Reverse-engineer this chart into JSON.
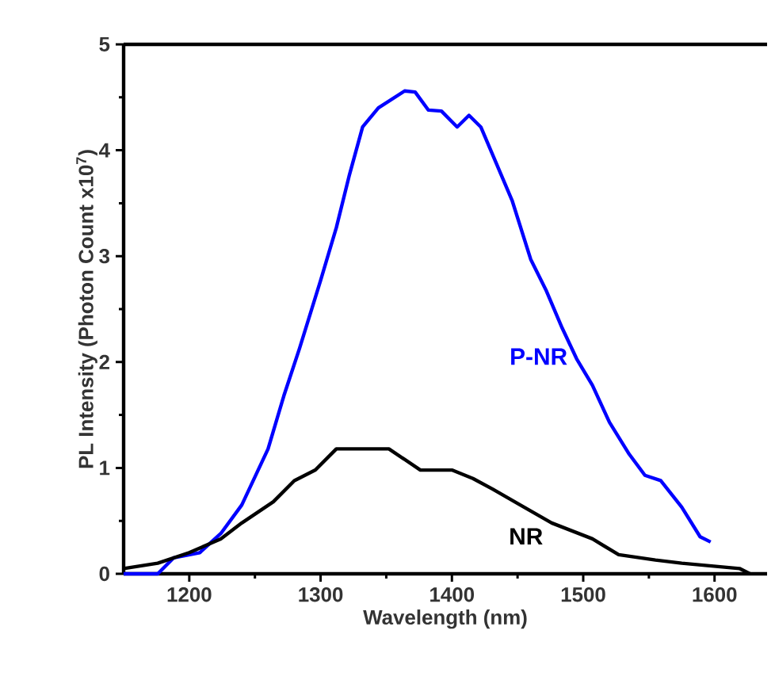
{
  "chart_data": {
    "type": "line",
    "xlabel": "Wavelength (nm)",
    "ylabel": "PL Intensity (Photon Count x10$^{7}$)",
    "xlim": [
      1150,
      1640
    ],
    "xticks": [
      1200,
      1300,
      1400,
      1500,
      1600
    ],
    "ylim": [
      0,
      5
    ],
    "yticks": [
      0,
      1,
      2,
      3,
      4,
      5
    ],
    "grid": false,
    "legend": false,
    "marker": "none",
    "line_style": "solid",
    "series": [
      {
        "name": "P-NR",
        "color": "#0000ff",
        "x": [
          1150,
          1176,
          1188,
          1208,
          1224,
          1240,
          1260,
          1272,
          1284,
          1300,
          1312,
          1322,
          1332,
          1344,
          1364,
          1372,
          1382,
          1392,
          1404,
          1413,
          1422,
          1434,
          1446,
          1460,
          1472,
          1484,
          1495,
          1507,
          1520,
          1535,
          1547,
          1559,
          1575,
          1589,
          1597
        ],
        "values": [
          0,
          0,
          0.15,
          0.2,
          0.38,
          0.65,
          1.18,
          1.68,
          2.13,
          2.77,
          3.27,
          3.77,
          4.22,
          4.4,
          4.56,
          4.55,
          4.38,
          4.37,
          4.22,
          4.33,
          4.22,
          3.87,
          3.52,
          2.97,
          2.67,
          2.32,
          2.03,
          1.78,
          1.43,
          1.13,
          0.93,
          0.88,
          0.63,
          0.35,
          0.3
        ]
      },
      {
        "name": "NR",
        "color": "#000000",
        "x": [
          1150,
          1176,
          1200,
          1224,
          1240,
          1264,
          1280,
          1296,
          1312,
          1352,
          1376,
          1400,
          1416,
          1431,
          1452,
          1476,
          1507,
          1527,
          1555,
          1575,
          1619,
          1627
        ],
        "values": [
          0.05,
          0.1,
          0.2,
          0.33,
          0.48,
          0.68,
          0.88,
          0.98,
          1.18,
          1.18,
          0.98,
          0.98,
          0.9,
          0.8,
          0.65,
          0.48,
          0.33,
          0.18,
          0.13,
          0.1,
          0.05,
          0
        ]
      }
    ]
  }
}
